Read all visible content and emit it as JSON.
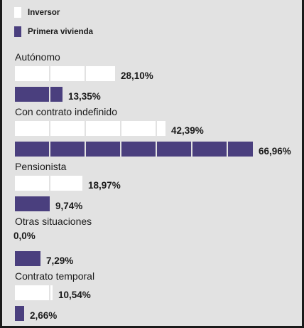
{
  "chart_data": {
    "type": "bar",
    "orientation": "horizontal",
    "unit": "%",
    "legend_position": "top-left",
    "categories": [
      "Autónomo",
      "Con contrato indefinido",
      "Pensionista",
      "Otras situaciones",
      "Contrato temporal"
    ],
    "series": [
      {
        "name": "Inversor",
        "color": "#ffffff",
        "values": [
          28.1,
          42.39,
          18.97,
          0.0,
          10.54
        ],
        "labels": [
          "28,10%",
          "42,39%",
          "18,97%",
          "0,0%",
          "10,54%"
        ]
      },
      {
        "name": "Primera vivienda",
        "color": "#4a3f7e",
        "values": [
          13.35,
          66.96,
          9.74,
          7.29,
          2.66
        ],
        "labels": [
          "13,35%",
          "66,96%",
          "9,74%",
          "7,29%",
          "2,66%"
        ]
      }
    ]
  },
  "colors": {
    "background": "#e2e2e2",
    "inversor": "#ffffff",
    "primera_vivienda": "#4a3f7e",
    "segment_divider": "#e2e2e2",
    "text": "#1a1a1a"
  }
}
